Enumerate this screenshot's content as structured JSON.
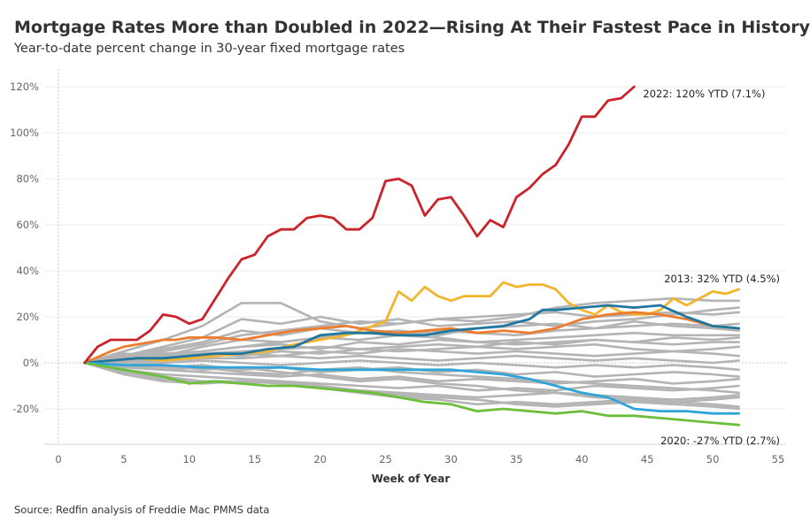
{
  "chart_data": {
    "type": "line",
    "title": "Mortgage Rates More than Doubled in 2022—Rising At Their Fastest Pace in History",
    "subtitle": "Year-to-date percent change in 30-year fixed mortgage rates",
    "xlabel": "Week of Year",
    "ylabel": "",
    "xlim": [
      0,
      55
    ],
    "ylim": [
      -30,
      125
    ],
    "x_ticks": [
      0,
      5,
      10,
      15,
      20,
      25,
      30,
      35,
      40,
      45,
      50,
      55
    ],
    "y_ticks": [
      -20,
      0,
      20,
      40,
      60,
      80,
      100,
      120
    ],
    "y_tick_labels": [
      "-20%",
      "0%",
      "20%",
      "40%",
      "60%",
      "80%",
      "100%",
      "120%"
    ],
    "grid": true,
    "source": "Source: Redfin analysis of Freddie Mac PMMS data",
    "annotations": [
      {
        "series": "2022",
        "text": "2022: 120% YTD (7.1%)"
      },
      {
        "series": "2013",
        "text": "2013: 32% YTD (4.5%)"
      },
      {
        "series": "2020",
        "text": "2020: -27% YTD (2.7%)"
      }
    ],
    "background_series_color": "#b4b4b4",
    "background_series": [
      {
        "name": "gray-a",
        "x": [
          2,
          5,
          8,
          11,
          14,
          17,
          20,
          23,
          26,
          29,
          32,
          35,
          38,
          41,
          44,
          47,
          50,
          52
        ],
        "values": [
          0,
          5,
          10,
          16,
          26,
          26,
          18,
          15,
          17,
          19,
          18,
          20,
          24,
          26,
          27,
          28,
          27,
          27
        ]
      },
      {
        "name": "gray-b",
        "x": [
          2,
          5,
          8,
          11,
          14,
          17,
          20,
          23,
          26,
          29,
          32,
          35,
          38,
          41,
          44,
          47,
          50,
          52
        ],
        "values": [
          0,
          3,
          7,
          11,
          19,
          17,
          20,
          17,
          19,
          16,
          17,
          18,
          16,
          18,
          19,
          21,
          23,
          24
        ]
      },
      {
        "name": "gray-c",
        "x": [
          2,
          5,
          8,
          11,
          14,
          17,
          20,
          23,
          26,
          29,
          32,
          35,
          38,
          41,
          44,
          47,
          50,
          52
        ],
        "values": [
          0,
          2,
          6,
          9,
          14,
          12,
          15,
          13,
          14,
          12,
          15,
          16,
          17,
          15,
          18,
          16,
          15,
          14
        ]
      },
      {
        "name": "gray-d",
        "x": [
          2,
          5,
          8,
          11,
          14,
          17,
          20,
          23,
          26,
          29,
          32,
          35,
          38,
          41,
          44,
          47,
          50,
          52
        ],
        "values": [
          0,
          4,
          3,
          7,
          10,
          9,
          11,
          10,
          12,
          11,
          9,
          10,
          11,
          12,
          13,
          12,
          12,
          12
        ]
      },
      {
        "name": "gray-e",
        "x": [
          2,
          5,
          8,
          11,
          14,
          17,
          20,
          23,
          26,
          29,
          32,
          35,
          38,
          41,
          44,
          47,
          50,
          52
        ],
        "values": [
          0,
          1,
          3,
          5,
          7,
          8,
          6,
          9,
          8,
          10,
          9,
          8,
          9,
          10,
          9,
          8,
          9,
          9
        ]
      },
      {
        "name": "gray-f",
        "x": [
          2,
          5,
          8,
          11,
          14,
          17,
          20,
          23,
          26,
          29,
          32,
          35,
          38,
          41,
          44,
          47,
          50,
          52
        ],
        "values": [
          0,
          2,
          1,
          4,
          5,
          6,
          7,
          6,
          5,
          6,
          7,
          6,
          7,
          8,
          6,
          5,
          6,
          7
        ]
      },
      {
        "name": "gray-g",
        "x": [
          2,
          5,
          8,
          11,
          14,
          17,
          20,
          23,
          26,
          29,
          32,
          35,
          38,
          41,
          44,
          47,
          50,
          52
        ],
        "values": [
          0,
          1,
          2,
          3,
          4,
          3,
          5,
          4,
          6,
          5,
          4,
          5,
          4,
          3,
          4,
          5,
          4,
          3
        ]
      },
      {
        "name": "gray-h",
        "x": [
          2,
          5,
          8,
          11,
          14,
          17,
          20,
          23,
          26,
          29,
          32,
          35,
          38,
          41,
          44,
          47,
          50,
          52
        ],
        "values": [
          0,
          0,
          1,
          2,
          2,
          3,
          2,
          3,
          2,
          1,
          2,
          3,
          2,
          1,
          2,
          1,
          0,
          1
        ]
      },
      {
        "name": "gray-i",
        "x": [
          2,
          5,
          8,
          11,
          14,
          17,
          20,
          23,
          26,
          29,
          32,
          35,
          38,
          41,
          44,
          47,
          50,
          52
        ],
        "values": [
          0,
          -1,
          0,
          1,
          0,
          -1,
          0,
          1,
          0,
          -1,
          0,
          -1,
          -2,
          -1,
          -2,
          -1,
          -2,
          -3
        ]
      },
      {
        "name": "gray-j",
        "x": [
          2,
          5,
          8,
          11,
          14,
          17,
          20,
          23,
          26,
          29,
          32,
          35,
          38,
          41,
          44,
          47,
          50,
          52
        ],
        "values": [
          0,
          -1,
          -2,
          -1,
          -3,
          -2,
          -4,
          -3,
          -2,
          -4,
          -3,
          -5,
          -4,
          -6,
          -5,
          -4,
          -5,
          -6
        ]
      },
      {
        "name": "gray-k",
        "x": [
          2,
          5,
          8,
          11,
          14,
          17,
          20,
          23,
          26,
          29,
          32,
          35,
          38,
          41,
          44,
          47,
          50,
          52
        ],
        "values": [
          0,
          -2,
          -3,
          -4,
          -5,
          -6,
          -5,
          -7,
          -6,
          -8,
          -7,
          -8,
          -9,
          -8,
          -7,
          -9,
          -8,
          -7
        ]
      },
      {
        "name": "gray-l",
        "x": [
          2,
          5,
          8,
          11,
          14,
          17,
          20,
          23,
          26,
          29,
          32,
          35,
          38,
          41,
          44,
          47,
          50,
          52
        ],
        "values": [
          0,
          -3,
          -5,
          -6,
          -7,
          -8,
          -9,
          -10,
          -11,
          -10,
          -12,
          -11,
          -12,
          -10,
          -11,
          -12,
          -11,
          -10
        ]
      },
      {
        "name": "gray-m",
        "x": [
          2,
          5,
          8,
          11,
          14,
          17,
          20,
          23,
          26,
          29,
          32,
          35,
          38,
          41,
          44,
          47,
          50,
          52
        ],
        "values": [
          0,
          -4,
          -7,
          -8,
          -8,
          -9,
          -10,
          -12,
          -13,
          -14,
          -15,
          -14,
          -13,
          -14,
          -15,
          -16,
          -15,
          -14
        ]
      },
      {
        "name": "gray-n",
        "x": [
          2,
          5,
          8,
          11,
          14,
          17,
          20,
          23,
          26,
          29,
          32,
          35,
          38,
          41,
          44,
          47,
          50,
          52
        ],
        "values": [
          0,
          -5,
          -8,
          -9,
          -8,
          -8,
          -11,
          -13,
          -15,
          -16,
          -18,
          -17,
          -18,
          -17,
          -16,
          -17,
          -16,
          -15
        ]
      },
      {
        "name": "gray-o",
        "x": [
          2,
          5,
          8,
          11,
          14,
          17,
          20,
          23,
          26,
          29,
          32,
          35,
          38,
          41,
          44,
          47,
          50,
          52
        ],
        "values": [
          0,
          -3,
          -6,
          -8,
          -9,
          -8,
          -10,
          -12,
          -14,
          -15,
          -16,
          -18,
          -19,
          -18,
          -17,
          -18,
          -19,
          -20
        ]
      },
      {
        "name": "gray-p",
        "x": [
          2,
          5,
          8,
          11,
          14,
          17,
          20,
          23,
          26,
          29,
          32,
          35,
          38,
          41,
          44,
          47,
          50,
          52
        ],
        "values": [
          0,
          3,
          5,
          8,
          12,
          14,
          16,
          18,
          17,
          19,
          20,
          21,
          22,
          20,
          21,
          22,
          21,
          22
        ]
      },
      {
        "name": "gray-q",
        "x": [
          2,
          5,
          8,
          11,
          14,
          17,
          20,
          23,
          26,
          29,
          32,
          35,
          38,
          41,
          44,
          47,
          50,
          52
        ],
        "values": [
          0,
          2,
          4,
          5,
          7,
          9,
          11,
          13,
          12,
          14,
          13,
          12,
          14,
          15,
          16,
          17,
          16,
          17
        ]
      },
      {
        "name": "gray-r",
        "x": [
          2,
          5,
          8,
          11,
          14,
          17,
          20,
          23,
          26,
          29,
          32,
          35,
          38,
          41,
          44,
          47,
          50,
          52
        ],
        "values": [
          0,
          -1,
          -3,
          -2,
          -4,
          -5,
          -3,
          -2,
          -4,
          -5,
          -6,
          -7,
          -8,
          -9,
          -10,
          -11,
          -12,
          -13
        ]
      },
      {
        "name": "gray-s",
        "x": [
          2,
          5,
          8,
          11,
          14,
          17,
          20,
          23,
          26,
          29,
          32,
          35,
          38,
          41,
          44,
          47,
          50,
          52
        ],
        "values": [
          0,
          1,
          2,
          4,
          3,
          5,
          4,
          6,
          7,
          8,
          7,
          9,
          8,
          10,
          9,
          11,
          10,
          11
        ]
      },
      {
        "name": "gray-t",
        "x": [
          2,
          5,
          8,
          11,
          14,
          17,
          20,
          23,
          26,
          29,
          32,
          35,
          38,
          41,
          44,
          47,
          50,
          52
        ],
        "values": [
          0,
          -2,
          -1,
          -3,
          -2,
          -4,
          -6,
          -8,
          -7,
          -9,
          -10,
          -12,
          -13,
          -15,
          -16,
          -17,
          -18,
          -19
        ]
      }
    ],
    "series": [
      {
        "name": "2013",
        "color": "#f2b530",
        "x": [
          2,
          4,
          6,
          8,
          10,
          12,
          14,
          16,
          18,
          20,
          22,
          24,
          25,
          26,
          27,
          28,
          29,
          30,
          31,
          32,
          33,
          34,
          35,
          36,
          37,
          38,
          39,
          40,
          41,
          42,
          43,
          44,
          45,
          46,
          47,
          48,
          49,
          50,
          51,
          52
        ],
        "values": [
          0,
          1,
          2,
          1,
          2,
          3,
          4,
          5,
          8,
          10,
          12,
          16,
          18,
          31,
          27,
          33,
          29,
          27,
          29,
          29,
          29,
          35,
          33,
          34,
          34,
          32,
          26,
          23,
          21,
          25,
          22,
          21,
          21,
          23,
          28,
          25,
          28,
          31,
          30,
          32
        ]
      },
      {
        "name": "orange",
        "color": "#ec7c2e",
        "x": [
          2,
          4,
          5,
          6,
          7,
          8,
          9,
          10,
          12,
          14,
          16,
          18,
          20,
          22,
          24,
          26,
          28,
          30,
          32,
          34,
          36,
          38,
          40,
          42,
          44,
          46,
          48,
          50,
          52
        ],
        "values": [
          0,
          5,
          7,
          8,
          9,
          10,
          10,
          11,
          11,
          10,
          12,
          14,
          15,
          16,
          14,
          13,
          14,
          15,
          13,
          14,
          13,
          15,
          19,
          21,
          22,
          21,
          19,
          16,
          15
        ]
      },
      {
        "name": "teal",
        "color": "#1f77a0",
        "x": [
          2,
          4,
          6,
          8,
          10,
          12,
          14,
          16,
          18,
          20,
          22,
          24,
          26,
          28,
          30,
          32,
          34,
          36,
          37,
          38,
          40,
          42,
          44,
          46,
          48,
          50,
          52
        ],
        "values": [
          0,
          1,
          2,
          2,
          3,
          4,
          4,
          6,
          7,
          12,
          13,
          13,
          12,
          12,
          14,
          15,
          16,
          19,
          23,
          23,
          24,
          25,
          24,
          25,
          20,
          16,
          15
        ]
      },
      {
        "name": "light-blue",
        "color": "#2ea4d8",
        "x": [
          2,
          5,
          8,
          11,
          14,
          17,
          20,
          23,
          26,
          28,
          30,
          32,
          34,
          36,
          38,
          40,
          42,
          44,
          46,
          48,
          50,
          52
        ],
        "values": [
          0,
          -1,
          -1,
          -2,
          -2,
          -2,
          -3,
          -3,
          -3,
          -3,
          -3,
          -4,
          -5,
          -7,
          -10,
          -13,
          -15,
          -20,
          -21,
          -21,
          -22,
          -22
        ]
      },
      {
        "name": "2020",
        "color": "#6cbf3b",
        "x": [
          2,
          4,
          6,
          8,
          10,
          12,
          14,
          16,
          18,
          20,
          22,
          24,
          26,
          28,
          30,
          32,
          34,
          36,
          38,
          40,
          42,
          44,
          46,
          48,
          50,
          52
        ],
        "values": [
          0,
          -2,
          -4,
          -6,
          -9,
          -8,
          -9,
          -10,
          -10,
          -11,
          -12,
          -13,
          -15,
          -17,
          -18,
          -21,
          -20,
          -21,
          -22,
          -21,
          -23,
          -23,
          -24,
          -25,
          -26,
          -27
        ]
      },
      {
        "name": "2022",
        "color": "#c9232b",
        "x": [
          2,
          3,
          4,
          5,
          6,
          7,
          8,
          9,
          10,
          11,
          12,
          13,
          14,
          15,
          16,
          17,
          18,
          19,
          20,
          21,
          22,
          23,
          24,
          25,
          26,
          27,
          28,
          29,
          30,
          31,
          32,
          33,
          34,
          35,
          36,
          37,
          38,
          39,
          40,
          41,
          42,
          43,
          44
        ],
        "values": [
          0,
          7,
          10,
          10,
          10,
          14,
          21,
          20,
          17,
          19,
          28,
          37,
          45,
          47,
          55,
          58,
          58,
          63,
          64,
          63,
          58,
          58,
          63,
          79,
          80,
          77,
          64,
          71,
          72,
          64,
          55,
          62,
          59,
          72,
          76,
          82,
          86,
          95,
          107,
          107,
          114,
          115,
          120
        ]
      }
    ]
  }
}
